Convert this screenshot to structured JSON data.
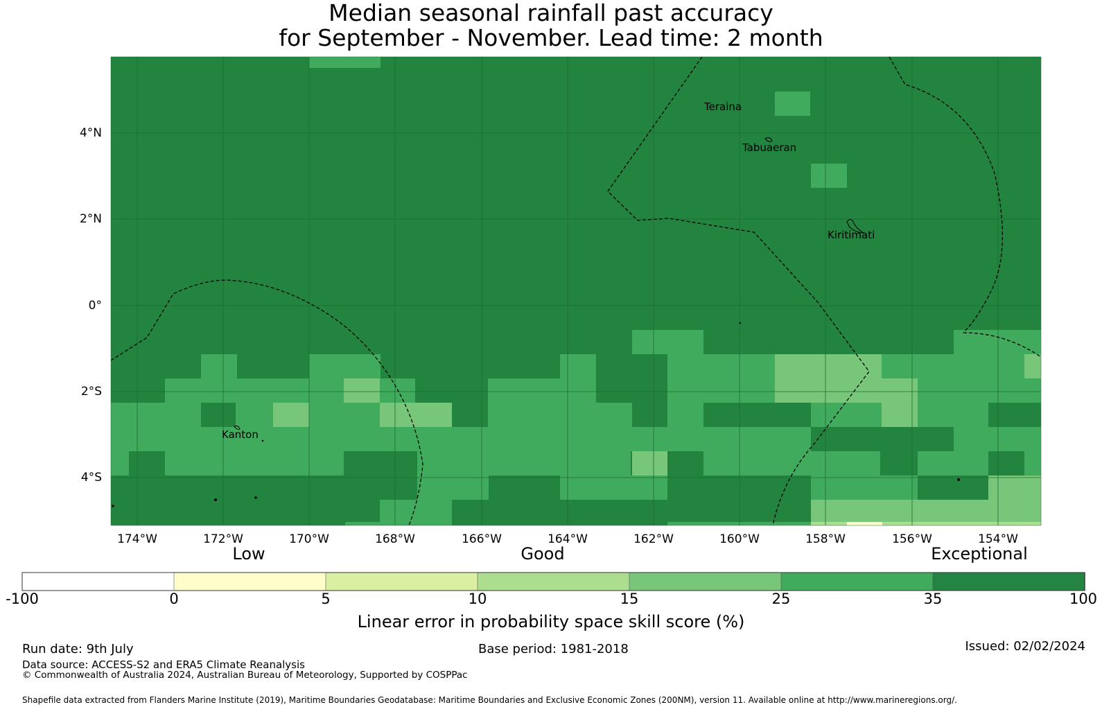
{
  "title": {
    "line1": "Median seasonal rainfall past accuracy",
    "line2": "for September - November. Lead time: 2 month"
  },
  "map": {
    "lat_ticks": [
      "4°N",
      "2°N",
      "0°",
      "2°S",
      "4°S"
    ],
    "lon_ticks": [
      "174°W",
      "172°W",
      "170°W",
      "168°W",
      "166°W",
      "164°W",
      "162°W",
      "160°W",
      "158°W",
      "156°W",
      "154°W"
    ],
    "places": [
      "Teraina",
      "Tabuaeran",
      "Kiritimati",
      "Kanton"
    ],
    "base_color": "#23843f"
  },
  "legend": {
    "qualitative": [
      "Low",
      "Good",
      "Exceptional"
    ],
    "ticks": [
      "-100",
      "0",
      "5",
      "10",
      "15",
      "25",
      "35",
      "100"
    ],
    "colors": [
      "#ffffff",
      "#ffffcc",
      "#d9f0a3",
      "#addd8e",
      "#78c679",
      "#41ab5d",
      "#238443"
    ],
    "label": "Linear error in probability space skill score (%)"
  },
  "footer": {
    "run_date": "Run date: 9th July",
    "base_period": "Base period: 1981-2018",
    "issued": "Issued: 02/02/2024",
    "data_source": "Data source: ACCESS-S2 and ERA5 Climate Reanalysis",
    "copyright": "© Commonwealth of Australia 2024, Australian Bureau of Meteorology, Supported by COSPPac",
    "shapefile": "Shapefile data extracted from Flanders Marine Institute (2019), Maritime Boundaries Geodatabase: Maritime Boundaries and Exclusive Economic Zones (200NM), version 11. Available online at http://www.marineregions.org/."
  }
}
